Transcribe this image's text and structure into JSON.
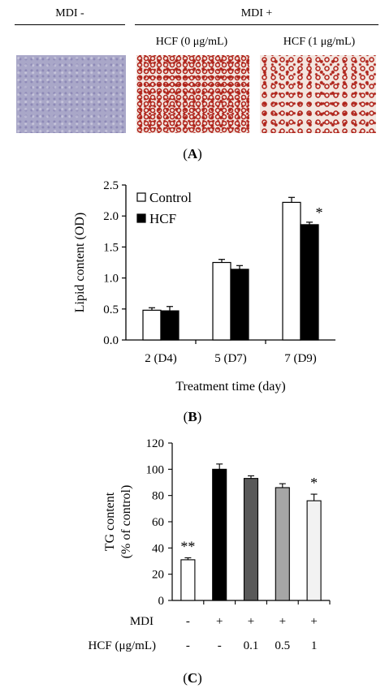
{
  "panel_a": {
    "group_minus": "MDI -",
    "group_plus": "MDI +",
    "hcf0_label": "HCF (0 μg/mL)",
    "hcf1_label": "HCF (1 μg/mL)",
    "panel_tag_open": "(",
    "panel_tag_letter": "A",
    "panel_tag_close": ")",
    "photo_colors": {
      "no_mdi": "#a9a7c8",
      "stain": "#b0251c",
      "background": "#f3e6e0"
    }
  },
  "panel_b_label": {
    "open": "(",
    "letter": "B",
    "close": ")"
  },
  "panel_c_label": {
    "open": "(",
    "letter": "C",
    "close": ")"
  },
  "chart_data": [
    {
      "type": "bar",
      "ylabel": "Lipid content (OD)",
      "xlabel": "Treatment time (day)",
      "categories": [
        "2 (D4)",
        "5 (D7)",
        "7 (D9)"
      ],
      "ylim": [
        0,
        2.5
      ],
      "yticks": [
        "0.0",
        "0.5",
        "1.0",
        "1.5",
        "2.0",
        "2.5"
      ],
      "series": [
        {
          "name": "Control",
          "color": "#ffffff",
          "values": [
            0.48,
            1.25,
            2.22
          ],
          "errors": [
            0.04,
            0.05,
            0.08
          ]
        },
        {
          "name": "HCF",
          "color": "#000000",
          "values": [
            0.47,
            1.14,
            1.86
          ],
          "errors": [
            0.07,
            0.06,
            0.04
          ]
        }
      ],
      "annotations": [
        {
          "category_index": 2,
          "series_index": 1,
          "text": "*"
        }
      ],
      "legend": "top-left",
      "grid": false
    },
    {
      "type": "bar",
      "ylabel": "TG content (% of control)",
      "ylim": [
        0,
        120
      ],
      "yticks": [
        "0",
        "20",
        "40",
        "60",
        "80",
        "100",
        "120"
      ],
      "values": [
        31,
        100,
        93,
        86,
        76
      ],
      "errors": [
        1.5,
        4,
        2,
        3,
        5
      ],
      "colors": [
        "#ffffff",
        "#000000",
        "#595959",
        "#a6a6a6",
        "#f2f2f2"
      ],
      "annotations": [
        "**",
        "",
        "",
        "",
        "*"
      ],
      "rows": [
        {
          "label": "MDI",
          "values": [
            "-",
            "+",
            "+",
            "+",
            "+"
          ]
        },
        {
          "label": "HCF (μg/mL)",
          "values": [
            "-",
            "-",
            "0.1",
            "0.5",
            "1"
          ]
        }
      ],
      "grid": false
    }
  ]
}
